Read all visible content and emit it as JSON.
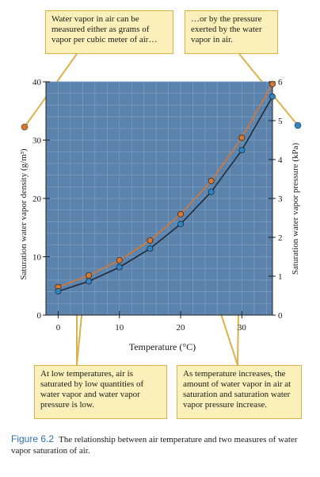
{
  "chart_data": {
    "type": "line",
    "xlabel": "Temperature (°C)",
    "ylabel_left": "Saturation water vapor density (g/m³)",
    "ylabel_right": "Saturation water vapor pressure (kPa)",
    "xlim": [
      -2,
      35
    ],
    "ylim_left": [
      0,
      40
    ],
    "ylim_right": [
      0,
      6
    ],
    "x_ticks": [
      0,
      10,
      20,
      30
    ],
    "y_ticks_left": [
      0,
      10,
      20,
      30,
      40
    ],
    "y_ticks_right": [
      0,
      1,
      2,
      3,
      4,
      5,
      6
    ],
    "grid": true,
    "series": [
      {
        "axis": "left",
        "marker": "orange circle",
        "x": [
          0,
          5,
          10,
          15,
          20,
          25,
          30,
          35
        ],
        "values": [
          4.8,
          6.8,
          9.4,
          12.8,
          17.3,
          23.0,
          30.4,
          39.6
        ]
      },
      {
        "axis": "right",
        "marker": "blue circle",
        "x": [
          0,
          5,
          10,
          15,
          20,
          25,
          30,
          35
        ],
        "values": [
          0.61,
          0.87,
          1.23,
          1.71,
          2.34,
          3.17,
          4.24,
          5.62
        ]
      }
    ]
  },
  "callouts": {
    "top_left": "Water vapor in air can be measured either as grams of vapor per cubic meter of air…",
    "top_right": "…or by the pressure exerted by the water vapor in air.",
    "bottom_left": "At low temperatures, air is saturated by low quantities of water vapor and water vapor pressure is low.",
    "bottom_right": "As temperature increases, the amount of water vapor in air at saturation and saturation water vapor pressure increase."
  },
  "caption": {
    "label": "Figure 6.2",
    "text": "The relationship between air temperature and two measures of water vapor saturation of air."
  },
  "colors": {
    "plot_bg": "#5b83ac",
    "grid": "#7e9fc2",
    "orange": "#d9772e",
    "blue": "#2e86c8",
    "line": "#1f2a3a",
    "callout_border": "#d9b24a",
    "callout_bg": "#fbf0b9"
  }
}
